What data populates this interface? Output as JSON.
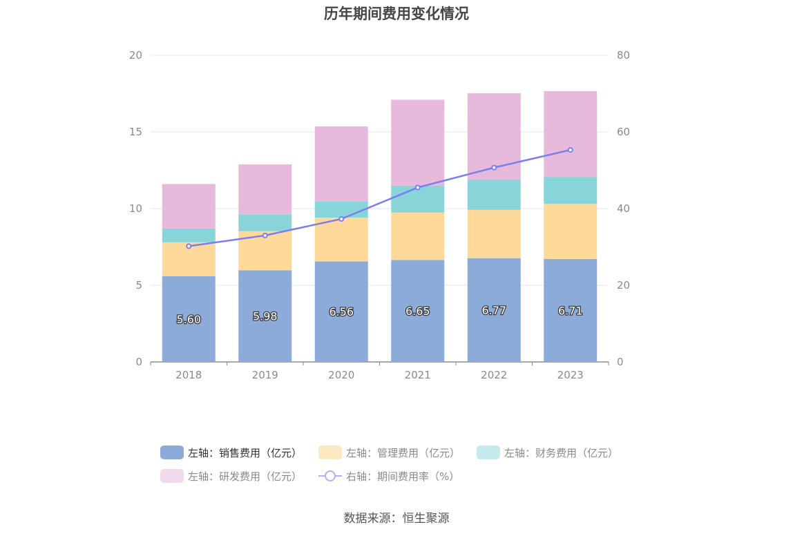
{
  "title": "历年期间费用变化情况",
  "source": "数据来源：恒生聚源",
  "legend": [
    {
      "label": "左轴：销售费用（亿元）",
      "color": "#8dabd9",
      "active": true
    },
    {
      "label": "左轴：管理费用（亿元）",
      "color": "#fde8c4",
      "active": false
    },
    {
      "label": "左轴：财务费用（亿元）",
      "color": "#c4eaed",
      "active": false
    },
    {
      "label": "左轴：研发费用（亿元）",
      "color": "#f2daed",
      "active": false
    },
    {
      "label": "右轴：期间费用率（%）",
      "color": "#b0b2f6",
      "active": false
    }
  ],
  "chart_data": {
    "type": "bar",
    "stacked": true,
    "categories": [
      "2018",
      "2019",
      "2020",
      "2021",
      "2022",
      "2023"
    ],
    "series": [
      {
        "name": "左轴：销售费用（亿元）",
        "type": "bar",
        "axis": "left",
        "color": "#8dabd9",
        "values": [
          5.6,
          5.98,
          6.56,
          6.65,
          6.77,
          6.71
        ],
        "labels": [
          "5.60",
          "5.98",
          "6.56",
          "6.65",
          "6.77",
          "6.71"
        ]
      },
      {
        "name": "左轴：管理费用（亿元）",
        "type": "bar",
        "axis": "left",
        "color": "#fed99a",
        "values": [
          2.2,
          2.55,
          2.85,
          3.1,
          3.15,
          3.6
        ]
      },
      {
        "name": "左轴：财务费用（亿元）",
        "type": "bar",
        "axis": "left",
        "color": "#87d5d8",
        "values": [
          0.9,
          1.1,
          1.05,
          1.75,
          1.95,
          1.75
        ]
      },
      {
        "name": "左轴：研发费用（亿元）",
        "type": "bar",
        "axis": "left",
        "color": "#e7b9da",
        "values": [
          2.9,
          3.25,
          4.9,
          5.6,
          5.65,
          5.6
        ]
      },
      {
        "name": "右轴：期间费用率（%）",
        "type": "line",
        "axis": "right",
        "color": "#7b7ef0",
        "values": [
          30.2,
          33.0,
          37.3,
          45.5,
          50.7,
          55.3
        ]
      }
    ],
    "left_axis": {
      "min": 0,
      "max": 20,
      "ticks": [
        0,
        5,
        10,
        15,
        20
      ]
    },
    "right_axis": {
      "min": 0,
      "max": 80,
      "ticks": [
        0,
        20,
        40,
        60,
        80
      ]
    },
    "grid": true,
    "legend_position": "bottom"
  }
}
